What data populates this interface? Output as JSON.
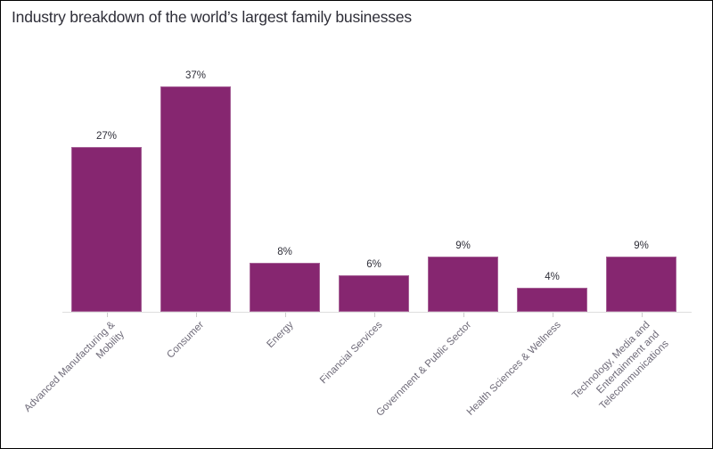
{
  "title": "Industry breakdown of the world’s largest family businesses",
  "chart_data": {
    "type": "bar",
    "title": "Industry breakdown of the world’s largest family businesses",
    "categories": [
      "Advanced Manufacturing & Mobility",
      "Consumer",
      "Energy",
      "Financial Services",
      "Government & Public Sector",
      "Health Sciences & Wellness",
      "Technology, Media and Entertainment and Telecommunications"
    ],
    "category_label_lines": [
      [
        "Advanced Manufacturing &",
        "Mobility"
      ],
      [
        "Consumer"
      ],
      [
        "Energy"
      ],
      [
        "Financial Services"
      ],
      [
        "Government & Public Sector"
      ],
      [
        "Health Sciences & Wellness"
      ],
      [
        "Technology, Media and",
        "Entertainment and",
        "Telecommunications"
      ]
    ],
    "values": [
      27,
      37,
      8,
      6,
      9,
      4,
      9
    ],
    "value_labels": [
      "27%",
      "37%",
      "8%",
      "6%",
      "9%",
      "4%",
      "9%"
    ],
    "unit": "%",
    "xlabel": "",
    "ylabel": "",
    "ylim": [
      0,
      37
    ],
    "grid": false,
    "legend": "none",
    "y_axis_visible": false,
    "tick_label_rotation_deg": -45,
    "colors": {
      "bar_fill": "#862670",
      "axis_line": "#dedede",
      "tick_mark": "#cccccc",
      "value_label_text": "#2e2e38",
      "category_label_text": "#6e6a78",
      "title_text": "#2e2e38",
      "background": "#ffffff",
      "frame_border": "#000000"
    }
  }
}
